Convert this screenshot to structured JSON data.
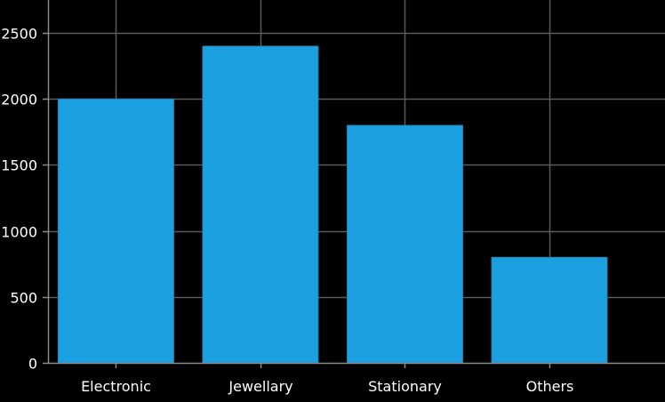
{
  "chart_data": {
    "type": "bar",
    "title": "",
    "xlabel": "",
    "ylabel": "",
    "categories": [
      "Electronic",
      "Jewellary",
      "Stationary",
      "Others"
    ],
    "values": [
      2000,
      2400,
      1800,
      800
    ],
    "ylim": [
      0,
      2750
    ],
    "yticks": [
      0,
      500,
      1000,
      1500,
      2000,
      2500
    ],
    "grid": true,
    "colors": {
      "background": "#000000",
      "bar": "#1ba1e2",
      "grid": "#5a5a5a",
      "axis": "#8a8a8a",
      "text": "#ffffff"
    }
  }
}
